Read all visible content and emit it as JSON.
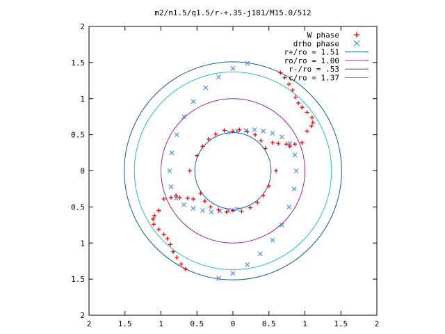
{
  "chart_data": {
    "type": "scatter",
    "title": "m2/n1.5/q1.5/r-+.35-j181/M15.0/512",
    "xlim": [
      -2,
      2
    ],
    "ylim": [
      -2,
      2
    ],
    "xticks": [
      -2,
      -1.5,
      -1,
      -0.5,
      0,
      0.5,
      1,
      1.5,
      2
    ],
    "yticks": [
      -2,
      -1.5,
      -1,
      -0.5,
      0,
      0.5,
      1,
      1.5,
      2
    ],
    "xtick_labels": [
      "2",
      "1.5",
      "1",
      "0.5",
      "0",
      "0.5",
      "1",
      "1.5",
      "2"
    ],
    "ytick_labels": [
      "2",
      "1.5",
      "1",
      "0.5",
      "0",
      "0.5",
      "1",
      "1.5",
      "2"
    ],
    "grid": false,
    "legend_position": "top-right",
    "series": [
      {
        "name": "W phase",
        "marker": "plus",
        "color": "#ff0000",
        "points": [
          [
            1.03,
            0.55
          ],
          [
            1.09,
            0.62
          ],
          [
            1.11,
            0.67
          ],
          [
            1.1,
            0.74
          ],
          [
            1.03,
            0.81
          ],
          [
            0.96,
            0.88
          ],
          [
            0.91,
            0.94
          ],
          [
            0.87,
            1.02
          ],
          [
            0.83,
            1.12
          ],
          [
            0.78,
            1.2
          ],
          [
            0.72,
            1.29
          ],
          [
            0.66,
            1.36
          ],
          [
            0.96,
            0.39
          ],
          [
            0.86,
            0.37
          ],
          [
            0.79,
            0.34
          ],
          [
            0.74,
            0.37
          ],
          [
            0.63,
            0.38
          ],
          [
            0.55,
            0.39
          ],
          [
            -1.03,
            -0.55
          ],
          [
            -1.09,
            -0.62
          ],
          [
            -1.11,
            -0.67
          ],
          [
            -1.1,
            -0.74
          ],
          [
            -1.03,
            -0.81
          ],
          [
            -0.96,
            -0.88
          ],
          [
            -0.91,
            -0.94
          ],
          [
            -0.87,
            -1.02
          ],
          [
            -0.83,
            -1.12
          ],
          [
            -0.78,
            -1.2
          ],
          [
            -0.72,
            -1.29
          ],
          [
            -0.66,
            -1.36
          ],
          [
            -0.96,
            -0.39
          ],
          [
            -0.86,
            -0.37
          ],
          [
            -0.79,
            -0.34
          ],
          [
            -0.74,
            -0.37
          ],
          [
            -0.63,
            -0.38
          ],
          [
            -0.55,
            -0.39
          ],
          [
            0.0,
            0.55
          ],
          [
            0.09,
            0.57
          ],
          [
            0.2,
            0.54
          ],
          [
            0.31,
            0.5
          ],
          [
            0.39,
            0.42
          ],
          [
            0.45,
            0.31
          ],
          [
            -0.12,
            0.56
          ],
          [
            -0.24,
            0.51
          ],
          [
            -0.34,
            0.44
          ],
          [
            -0.42,
            0.34
          ],
          [
            -0.5,
            0.21
          ],
          [
            -0.6,
            0.0
          ],
          [
            0.6,
            0.0
          ],
          [
            0.0,
            -0.55
          ],
          [
            -0.09,
            -0.57
          ],
          [
            -0.2,
            -0.54
          ],
          [
            -0.31,
            -0.5
          ],
          [
            -0.39,
            -0.42
          ],
          [
            -0.45,
            -0.31
          ],
          [
            0.12,
            -0.56
          ],
          [
            0.24,
            -0.51
          ],
          [
            0.34,
            -0.44
          ],
          [
            0.42,
            -0.34
          ],
          [
            0.5,
            -0.21
          ]
        ]
      },
      {
        "name": "drho phase",
        "marker": "cross",
        "color": "#4a90e2",
        "points": [
          [
            0.2,
            1.49
          ],
          [
            0.0,
            1.42
          ],
          [
            -0.2,
            1.3
          ],
          [
            -0.38,
            1.15
          ],
          [
            -0.55,
            0.96
          ],
          [
            -0.68,
            0.75
          ],
          [
            -0.78,
            0.5
          ],
          [
            -0.85,
            0.25
          ],
          [
            -0.88,
            0.0
          ],
          [
            -0.86,
            -0.22
          ],
          [
            -0.79,
            -0.38
          ],
          [
            -0.68,
            -0.47
          ],
          [
            -0.55,
            -0.52
          ],
          [
            -0.42,
            -0.55
          ],
          [
            -0.3,
            -0.57
          ],
          [
            -0.18,
            -0.56
          ],
          [
            -0.06,
            -0.55
          ],
          [
            0.06,
            -0.53
          ],
          [
            -0.2,
            -1.49
          ],
          [
            0.0,
            -1.42
          ],
          [
            0.2,
            -1.3
          ],
          [
            0.38,
            -1.15
          ],
          [
            0.55,
            -0.96
          ],
          [
            0.68,
            -0.75
          ],
          [
            0.78,
            -0.5
          ],
          [
            0.85,
            -0.25
          ],
          [
            0.88,
            0.0
          ],
          [
            0.86,
            0.22
          ],
          [
            0.79,
            0.38
          ],
          [
            0.68,
            0.47
          ],
          [
            0.55,
            0.52
          ],
          [
            0.42,
            0.55
          ],
          [
            0.3,
            0.57
          ],
          [
            0.18,
            0.56
          ],
          [
            0.06,
            0.55
          ],
          [
            -0.06,
            0.53
          ]
        ]
      },
      {
        "name": "r+/ro = 1.51",
        "type": "circle",
        "radius": 1.51,
        "color": "#0a5ca0"
      },
      {
        "name": "ro/ro = 1.00",
        "type": "circle",
        "radius": 1.0,
        "color": "#a020a0"
      },
      {
        "name": "r-/ro = .53",
        "type": "circle",
        "radius": 0.53,
        "color": "#1060b0"
      },
      {
        "name": "c/ro = 1.37",
        "type": "circle",
        "radius": 1.37,
        "color": "#20c0c8"
      }
    ]
  }
}
